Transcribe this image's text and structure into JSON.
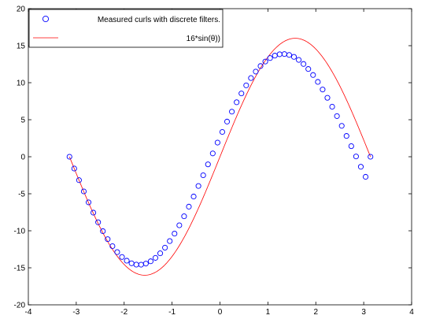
{
  "chart_data": {
    "type": "scatter",
    "xlim": [
      -4,
      4
    ],
    "ylim": [
      -20,
      20
    ],
    "xticks": [
      "-4",
      "-3",
      "-2",
      "-1",
      "0",
      "1",
      "2",
      "3",
      "4"
    ],
    "yticks": [
      "-20",
      "-15",
      "-10",
      "-5",
      "0",
      "5",
      "10",
      "15",
      "20"
    ],
    "grid": false,
    "legend_position": "top-left",
    "series": [
      {
        "name": "Measured curls with discrete filters.",
        "style": "markers",
        "marker": "circle",
        "color": "#0000ff",
        "x": [
          -3.1416,
          -3.042,
          -2.9423,
          -2.8426,
          -2.7429,
          -2.6432,
          -2.5435,
          -2.4438,
          -2.3441,
          -2.2444,
          -2.1447,
          -2.045,
          -1.9453,
          -1.8456,
          -1.7459,
          -1.6462,
          -1.5465,
          -1.4468,
          -1.3471,
          -1.2474,
          -1.1477,
          -1.048,
          -0.9483,
          -0.8486,
          -0.7489,
          -0.6492,
          -0.5495,
          -0.4498,
          -0.3501,
          -0.2504,
          -0.1507,
          -0.051,
          0.0487,
          0.1484,
          0.2481,
          0.3478,
          0.4475,
          0.5472,
          0.6469,
          0.7466,
          0.8463,
          0.946,
          1.0457,
          1.1454,
          1.2451,
          1.3448,
          1.4445,
          1.5442,
          1.6439,
          1.7436,
          1.8433,
          1.943,
          2.0427,
          2.1424,
          2.2421,
          2.3418,
          2.4415,
          2.5412,
          2.6409,
          2.7406,
          2.8403,
          2.94,
          3.0397,
          3.1416
        ],
        "y": [
          0.0,
          -1.59,
          -3.16,
          -4.68,
          -6.16,
          -7.55,
          -8.85,
          -10.05,
          -11.13,
          -12.08,
          -12.88,
          -13.54,
          -14.04,
          -14.39,
          -14.57,
          -14.58,
          -14.43,
          -14.12,
          -13.66,
          -13.04,
          -12.28,
          -11.39,
          -10.38,
          -9.26,
          -8.04,
          -6.74,
          -5.37,
          -3.95,
          -2.5,
          -1.03,
          0.45,
          1.91,
          3.35,
          4.75,
          6.09,
          7.36,
          8.55,
          9.64,
          10.63,
          11.5,
          12.25,
          12.86,
          13.33,
          13.66,
          13.84,
          13.87,
          13.75,
          13.49,
          13.08,
          12.53,
          11.85,
          11.04,
          10.11,
          9.08,
          7.96,
          6.76,
          5.49,
          4.17,
          2.81,
          1.43,
          0.04,
          -1.35,
          -2.71,
          0.0
        ]
      },
      {
        "name": "16*sin(θ))",
        "style": "line",
        "color": "#ff0000",
        "function": "16*sin(x)",
        "x_range": [
          -3.1416,
          3.1416
        ]
      }
    ]
  }
}
